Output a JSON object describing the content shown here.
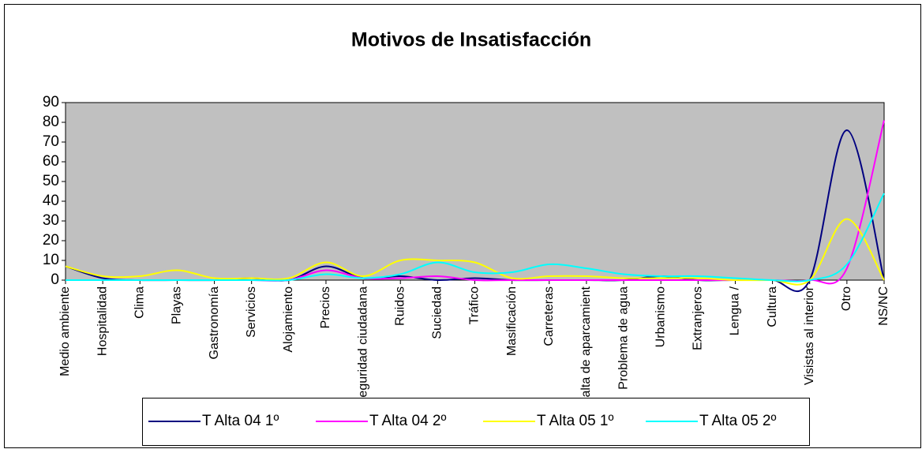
{
  "chart_data": {
    "type": "line",
    "title": "Motivos de Insatisfacción",
    "categories": [
      "Medio ambiente",
      "Hospitalidad",
      "Clima",
      "Playas",
      "Gastronomía",
      "Servicios",
      "Alojamiento",
      "Precios",
      "Seguridad ciudadana",
      "Ruidos",
      "Suciedad",
      "Tráfico",
      "Masificación",
      "Carreteras",
      "Falta de aparcamient",
      "Problema de agua",
      "Urbanismo",
      "Extranjeros",
      "Lengua /",
      "Cultura",
      "Visistas al interior",
      "Otro",
      "NS/NC"
    ],
    "series": [
      {
        "name": "T Alta 04 1º",
        "color": "#000080",
        "values": [
          7,
          1,
          0,
          0,
          0,
          1,
          0,
          7,
          1,
          2,
          0,
          1,
          0,
          0,
          0,
          0,
          2,
          0,
          0,
          0,
          0,
          76,
          0
        ]
      },
      {
        "name": "T Alta 04 2º",
        "color": "#ff00ff",
        "values": [
          0,
          0,
          0,
          0,
          0,
          0,
          0,
          5,
          1,
          1,
          2,
          0,
          0,
          0,
          0,
          0,
          0,
          0,
          0,
          0,
          0,
          6,
          81
        ]
      },
      {
        "name": "T Alta 05 1º",
        "color": "#ffff00",
        "values": [
          7,
          2,
          2,
          5,
          1,
          1,
          1,
          9,
          2,
          10,
          10,
          9,
          1,
          2,
          2,
          1,
          1,
          1,
          0,
          0,
          0,
          31,
          0
        ]
      },
      {
        "name": "T Alta 05 2º",
        "color": "#00ffff",
        "values": [
          0,
          0,
          0,
          0,
          0,
          0,
          0,
          3,
          1,
          3,
          9,
          4,
          4,
          8,
          6,
          3,
          2,
          2,
          1,
          0,
          0,
          8,
          44
        ]
      }
    ],
    "ylim": [
      0,
      90
    ],
    "yticks": [
      0,
      10,
      20,
      30,
      40,
      50,
      60,
      70,
      80,
      90
    ],
    "plot_background": "#c0c0c0",
    "legend": "bottom"
  }
}
